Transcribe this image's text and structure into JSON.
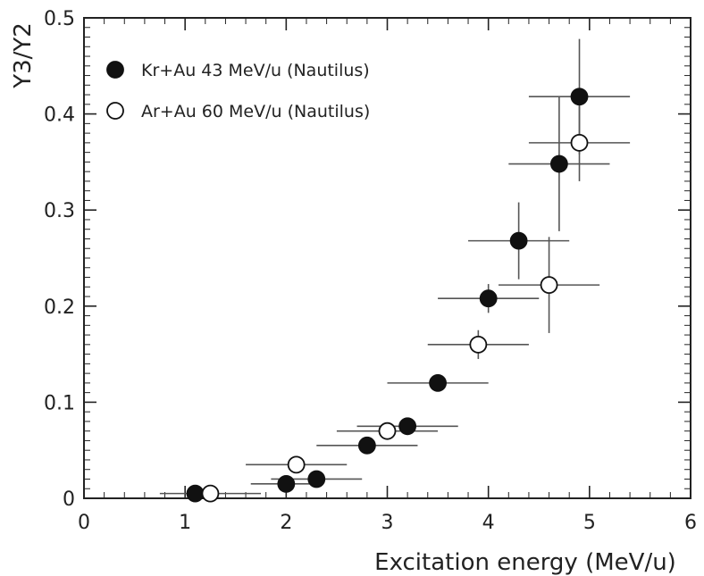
{
  "chart_data": {
    "type": "scatter",
    "xlabel": "Excitation energy (MeV/u)",
    "ylabel": "Y3/Y2",
    "xlim": [
      0,
      6
    ],
    "ylim": [
      0,
      0.5
    ],
    "xticks": [
      0,
      1,
      2,
      3,
      4,
      5,
      6
    ],
    "xtick_labels": [
      "0",
      "1",
      "2",
      "3",
      "4",
      "5",
      "6"
    ],
    "yticks": [
      0,
      0.1,
      0.2,
      0.3,
      0.4,
      0.5
    ],
    "ytick_labels": [
      "0",
      "0.1",
      "0.2",
      "0.3",
      "0.4",
      "0.5"
    ],
    "grid": false,
    "legend_position": "top-left",
    "series": [
      {
        "name": "Kr+Au 43 MeV/u (Nautilus)",
        "marker": "filled-circle",
        "color": "#111111",
        "points": [
          {
            "x": 1.1,
            "y": 0.005,
            "xerr": 0.0,
            "yerr": 0.0
          },
          {
            "x": 2.0,
            "y": 0.015,
            "xerr": 0.35,
            "yerr": 0.0
          },
          {
            "x": 2.3,
            "y": 0.02,
            "xerr": 0.45,
            "yerr": 0.0
          },
          {
            "x": 2.8,
            "y": 0.055,
            "xerr": 0.5,
            "yerr": 0.0
          },
          {
            "x": 3.2,
            "y": 0.075,
            "xerr": 0.5,
            "yerr": 0.0
          },
          {
            "x": 3.5,
            "y": 0.12,
            "xerr": 0.5,
            "yerr": 0.0
          },
          {
            "x": 4.0,
            "y": 0.208,
            "xerr": 0.5,
            "yerr": 0.015
          },
          {
            "x": 4.3,
            "y": 0.268,
            "xerr": 0.5,
            "yerr": 0.04
          },
          {
            "x": 4.7,
            "y": 0.348,
            "xerr": 0.5,
            "yerr": 0.07
          },
          {
            "x": 4.9,
            "y": 0.418,
            "xerr": 0.5,
            "yerr": 0.06
          }
        ]
      },
      {
        "name": "Ar+Au 60 MeV/u (Nautilus)",
        "marker": "open-circle",
        "color": "#111111",
        "points": [
          {
            "x": 1.25,
            "y": 0.005,
            "xerr": 0.5,
            "yerr": 0.0
          },
          {
            "x": 2.1,
            "y": 0.035,
            "xerr": 0.5,
            "yerr": 0.0
          },
          {
            "x": 3.0,
            "y": 0.07,
            "xerr": 0.5,
            "yerr": 0.0
          },
          {
            "x": 3.9,
            "y": 0.16,
            "xerr": 0.5,
            "yerr": 0.015
          },
          {
            "x": 4.6,
            "y": 0.222,
            "xerr": 0.5,
            "yerr": 0.05
          },
          {
            "x": 4.9,
            "y": 0.37,
            "xerr": 0.5,
            "yerr": 0.04
          }
        ]
      }
    ]
  }
}
